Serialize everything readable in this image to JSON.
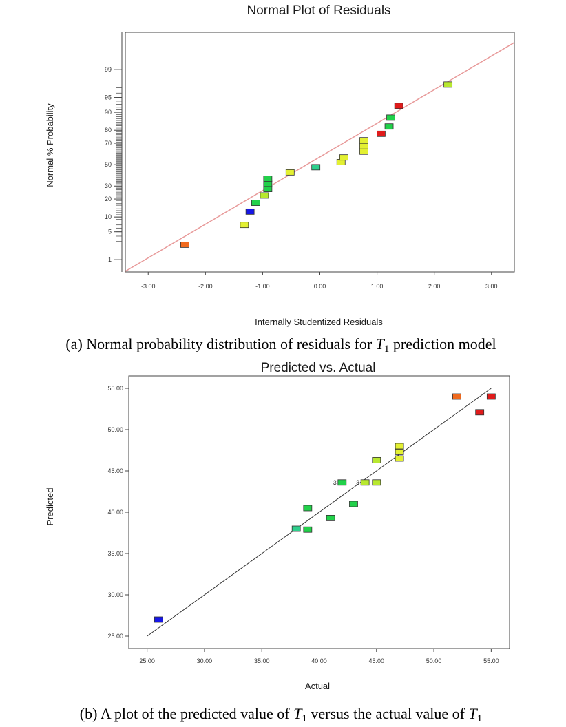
{
  "captions": {
    "a_prefix": "(a) Normal probability distribution of residuals for ",
    "a_var": "T",
    "a_sub": "1",
    "a_suffix": " prediction model",
    "b_prefix": "(b) A plot of the predicted value of ",
    "b_var1": "T",
    "b_sub1": "1",
    "b_mid": " versus the actual value of ",
    "b_var2": "T",
    "b_sub2": "1"
  },
  "colors": {
    "low": "#1616e8",
    "green": "#22d14a",
    "teal": "#2ecf8c",
    "yellow_green": "#b8e830",
    "yellow": "#e3f032",
    "orange": "#f06a1e",
    "red": "#e01b1b",
    "fit_line_a": "#e89a9a",
    "fit_line_b": "#333333"
  },
  "chart_data": [
    {
      "type": "scatter",
      "title": "Normal Plot of Residuals",
      "xlabel": "Internally Studentized Residuals",
      "ylabel": "Normal % Probability",
      "xlim": [
        -3.4,
        3.4
      ],
      "x_ticks": [
        "-3.00",
        "-2.00",
        "-1.00",
        "0.00",
        "1.00",
        "2.00",
        "3.00"
      ],
      "y_scale": "normal-probability",
      "y_ticks": [
        "1",
        "5",
        "10",
        "20",
        "30",
        "50",
        "70",
        "80",
        "90",
        "95",
        "99"
      ],
      "grid": false,
      "fit_line": {
        "x": [
          -3.4,
          3.4
        ],
        "y": [
          0.45,
          99.86
        ]
      },
      "points": [
        {
          "x": -2.36,
          "y": 2.5,
          "color": "orange"
        },
        {
          "x": -1.32,
          "y": 7.0,
          "color": "yellow"
        },
        {
          "x": -1.22,
          "y": 12.5,
          "color": "low"
        },
        {
          "x": -1.12,
          "y": 17.5,
          "color": "green"
        },
        {
          "x": -0.97,
          "y": 22.5,
          "color": "yellow_green"
        },
        {
          "x": -0.91,
          "y": 27.5,
          "color": "green"
        },
        {
          "x": -0.91,
          "y": 32.0,
          "color": "green"
        },
        {
          "x": -0.91,
          "y": 36.5,
          "color": "green"
        },
        {
          "x": -0.52,
          "y": 42.5,
          "color": "yellow"
        },
        {
          "x": -0.07,
          "y": 47.5,
          "color": "teal"
        },
        {
          "x": 0.37,
          "y": 52.5,
          "color": "yellow"
        },
        {
          "x": 0.42,
          "y": 57.0,
          "color": "yellow"
        },
        {
          "x": 0.77,
          "y": 62.5,
          "color": "yellow"
        },
        {
          "x": 0.77,
          "y": 67.5,
          "color": "yellow"
        },
        {
          "x": 0.77,
          "y": 72.5,
          "color": "yellow"
        },
        {
          "x": 1.07,
          "y": 77.5,
          "color": "red"
        },
        {
          "x": 1.21,
          "y": 82.5,
          "color": "green"
        },
        {
          "x": 1.24,
          "y": 87.5,
          "color": "green"
        },
        {
          "x": 1.38,
          "y": 92.5,
          "color": "red"
        },
        {
          "x": 2.24,
          "y": 97.5,
          "color": "yellow_green"
        }
      ]
    },
    {
      "type": "scatter",
      "title": "Predicted vs. Actual",
      "xlabel": "Actual",
      "ylabel": "Predicted",
      "xlim": [
        23.4,
        56.6
      ],
      "ylim": [
        23.5,
        56.5
      ],
      "x_ticks": [
        "25.00",
        "30.00",
        "35.00",
        "40.00",
        "45.00",
        "50.00",
        "55.00"
      ],
      "y_ticks": [
        "25.00",
        "30.00",
        "35.00",
        "40.00",
        "45.00",
        "50.00",
        "55.00"
      ],
      "grid": false,
      "fit_line": {
        "x": [
          25,
          55
        ],
        "y": [
          25,
          55
        ]
      },
      "points": [
        {
          "x": 26,
          "y": 27.0,
          "color": "low"
        },
        {
          "x": 38,
          "y": 38.0,
          "color": "teal"
        },
        {
          "x": 39,
          "y": 37.9,
          "color": "green"
        },
        {
          "x": 39,
          "y": 40.5,
          "color": "green"
        },
        {
          "x": 41,
          "y": 39.3,
          "color": "green"
        },
        {
          "x": 42,
          "y": 43.6,
          "color": "green",
          "label": "3"
        },
        {
          "x": 43,
          "y": 41.0,
          "color": "green"
        },
        {
          "x": 44,
          "y": 43.6,
          "color": "yellow_green",
          "label": "3"
        },
        {
          "x": 45,
          "y": 43.6,
          "color": "yellow_green"
        },
        {
          "x": 45,
          "y": 46.3,
          "color": "yellow_green"
        },
        {
          "x": 47,
          "y": 46.5,
          "color": "yellow"
        },
        {
          "x": 47,
          "y": 47.3,
          "color": "yellow"
        },
        {
          "x": 47,
          "y": 48.0,
          "color": "yellow"
        },
        {
          "x": 52,
          "y": 54.0,
          "color": "orange"
        },
        {
          "x": 54,
          "y": 52.1,
          "color": "red"
        },
        {
          "x": 55,
          "y": 54.0,
          "color": "red"
        }
      ]
    }
  ]
}
